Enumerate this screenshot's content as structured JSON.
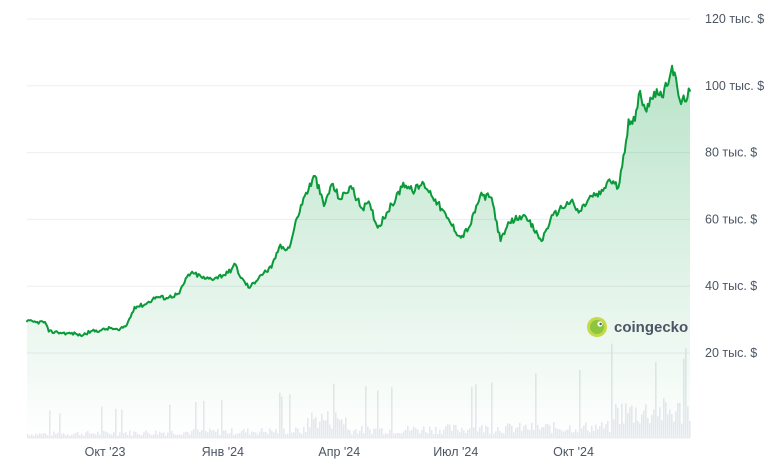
{
  "chart_data": {
    "type": "area",
    "ylim": [
      0,
      125000
    ],
    "y_ticks": [
      {
        "value": 20000,
        "label": "20 тыс. $"
      },
      {
        "value": 40000,
        "label": "40 тыс. $"
      },
      {
        "value": 60000,
        "label": "60 тыс. $"
      },
      {
        "value": 80000,
        "label": "80 тыс. $"
      },
      {
        "value": 100000,
        "label": "100 тыс. $"
      },
      {
        "value": 120000,
        "label": "120 тыс. $"
      }
    ],
    "x_ticks": [
      {
        "date": "2023-10-01",
        "label": "Окт '23"
      },
      {
        "date": "2024-01-01",
        "label": "Янв '24"
      },
      {
        "date": "2024-04-01",
        "label": "Апр '24"
      },
      {
        "date": "2024-07-01",
        "label": "Июл '24"
      },
      {
        "date": "2024-10-01",
        "label": "Окт '24"
      }
    ],
    "xlim": [
      "2023-08-01",
      "2024-12-31"
    ],
    "line_color": "#0a9a3a",
    "fill_color": "#16a34a",
    "grid": true,
    "series": [
      {
        "points": [
          [
            "2023-08-01",
            29500
          ],
          [
            "2023-08-08",
            29200
          ],
          [
            "2023-08-15",
            29300
          ],
          [
            "2023-08-18",
            26400
          ],
          [
            "2023-08-25",
            26200
          ],
          [
            "2023-09-01",
            25900
          ],
          [
            "2023-09-08",
            25800
          ],
          [
            "2023-09-12",
            25200
          ],
          [
            "2023-09-20",
            26500
          ],
          [
            "2023-09-28",
            26800
          ],
          [
            "2023-10-05",
            27500
          ],
          [
            "2023-10-12",
            26800
          ],
          [
            "2023-10-18",
            28400
          ],
          [
            "2023-10-24",
            33800
          ],
          [
            "2023-11-01",
            34500
          ],
          [
            "2023-11-10",
            36800
          ],
          [
            "2023-11-18",
            36500
          ],
          [
            "2023-11-28",
            37800
          ],
          [
            "2023-12-05",
            43500
          ],
          [
            "2023-12-10",
            43800
          ],
          [
            "2023-12-18",
            42200
          ],
          [
            "2023-12-26",
            42500
          ],
          [
            "2024-01-05",
            44000
          ],
          [
            "2024-01-11",
            46500
          ],
          [
            "2024-01-15",
            42500
          ],
          [
            "2024-01-22",
            39500
          ],
          [
            "2024-01-30",
            43200
          ],
          [
            "2024-02-08",
            45500
          ],
          [
            "2024-02-14",
            51700
          ],
          [
            "2024-02-22",
            51500
          ],
          [
            "2024-02-28",
            60500
          ],
          [
            "2024-03-05",
            67000
          ],
          [
            "2024-03-13",
            73000
          ],
          [
            "2024-03-20",
            64000
          ],
          [
            "2024-03-26",
            70500
          ],
          [
            "2024-04-02",
            66000
          ],
          [
            "2024-04-10",
            70000
          ],
          [
            "2024-04-18",
            63500
          ],
          [
            "2024-04-25",
            64500
          ],
          [
            "2024-05-01",
            57500
          ],
          [
            "2024-05-08",
            62000
          ],
          [
            "2024-05-15",
            66000
          ],
          [
            "2024-05-21",
            71000
          ],
          [
            "2024-05-28",
            68500
          ],
          [
            "2024-06-06",
            70800
          ],
          [
            "2024-06-15",
            66000
          ],
          [
            "2024-06-24",
            60500
          ],
          [
            "2024-07-05",
            54500
          ],
          [
            "2024-07-12",
            58000
          ],
          [
            "2024-07-20",
            67000
          ],
          [
            "2024-07-29",
            66500
          ],
          [
            "2024-08-05",
            53500
          ],
          [
            "2024-08-12",
            59000
          ],
          [
            "2024-08-20",
            61000
          ],
          [
            "2024-08-27",
            59500
          ],
          [
            "2024-09-06",
            53500
          ],
          [
            "2024-09-13",
            60000
          ],
          [
            "2024-09-20",
            63000
          ],
          [
            "2024-09-29",
            65500
          ],
          [
            "2024-10-05",
            62000
          ],
          [
            "2024-10-15",
            67000
          ],
          [
            "2024-10-22",
            67500
          ],
          [
            "2024-10-29",
            72000
          ],
          [
            "2024-11-05",
            69500
          ],
          [
            "2024-11-10",
            80000
          ],
          [
            "2024-11-13",
            90000
          ],
          [
            "2024-11-18",
            89500
          ],
          [
            "2024-11-22",
            98500
          ],
          [
            "2024-11-26",
            93000
          ],
          [
            "2024-12-05",
            99000
          ],
          [
            "2024-12-10",
            96500
          ],
          [
            "2024-12-17",
            106000
          ],
          [
            "2024-12-24",
            94500
          ],
          [
            "2024-12-31",
            98500
          ]
        ]
      }
    ]
  },
  "brand": {
    "name": "coingecko"
  }
}
